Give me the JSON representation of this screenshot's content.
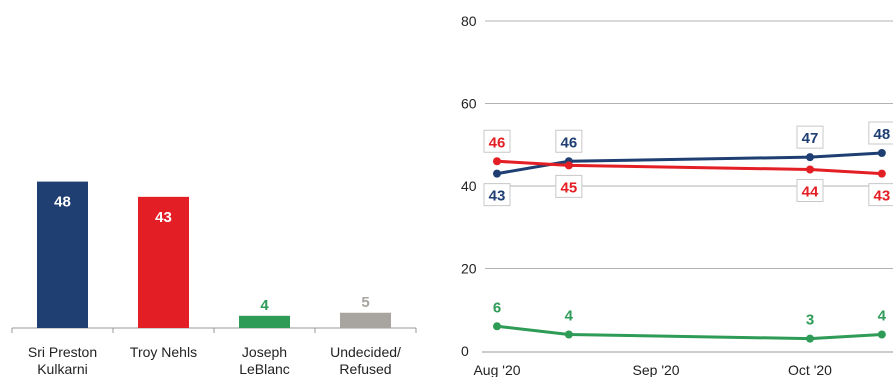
{
  "colors": {
    "kulkarni": "#1f3f73",
    "nehls": "#e31e24",
    "leblanc": "#2e9b57",
    "undecided": "#a8a4a0",
    "axis": "#999999",
    "grid": "#b3b3b3",
    "text": "#222222"
  },
  "chart_data": [
    {
      "type": "bar",
      "categories": [
        [
          "Sri Preston",
          "Kulkarni"
        ],
        [
          "Troy Nehls"
        ],
        [
          "Joseph",
          "LeBlanc"
        ],
        [
          "Undecided/",
          "Refused"
        ]
      ],
      "values": [
        48,
        43,
        4,
        5
      ],
      "value_labels": [
        "48",
        "43",
        "4",
        "5"
      ],
      "bar_colors": [
        "kulkarni",
        "nehls",
        "leblanc",
        "undecided"
      ],
      "title": "",
      "xlabel": "",
      "ylabel": "",
      "ylim": [
        0,
        70
      ]
    },
    {
      "type": "line",
      "x": [
        "2020-08-01",
        "2020-08-15",
        "2020-10-01",
        "2020-10-15"
      ],
      "xticks": [
        {
          "date": "2020-08-01",
          "label": "Aug '20"
        },
        {
          "date": "2020-09-01",
          "label": "Sep '20"
        },
        {
          "date": "2020-10-01",
          "label": "Oct '20"
        }
      ],
      "yticks": [
        0,
        20,
        40,
        60,
        80
      ],
      "ylim": [
        0,
        80
      ],
      "grid": true,
      "series": [
        {
          "color": "kulkarni",
          "values": [
            43,
            46,
            47,
            48
          ],
          "labels": [
            "43",
            "46",
            "47",
            "48"
          ],
          "label_pos": [
            "below",
            "above",
            "above",
            "above"
          ],
          "boxed": true
        },
        {
          "color": "nehls",
          "values": [
            46,
            45,
            44,
            43
          ],
          "labels": [
            "46",
            "45",
            "44",
            "43"
          ],
          "label_pos": [
            "above",
            "below",
            "below",
            "below"
          ],
          "boxed": true
        },
        {
          "color": "leblanc",
          "values": [
            6,
            4,
            3,
            4
          ],
          "labels": [
            "6",
            "4",
            "3",
            "4"
          ],
          "label_pos": [
            "above",
            "above",
            "above",
            "above"
          ],
          "boxed": false
        }
      ],
      "title": "",
      "xlabel": "",
      "ylabel": ""
    }
  ]
}
